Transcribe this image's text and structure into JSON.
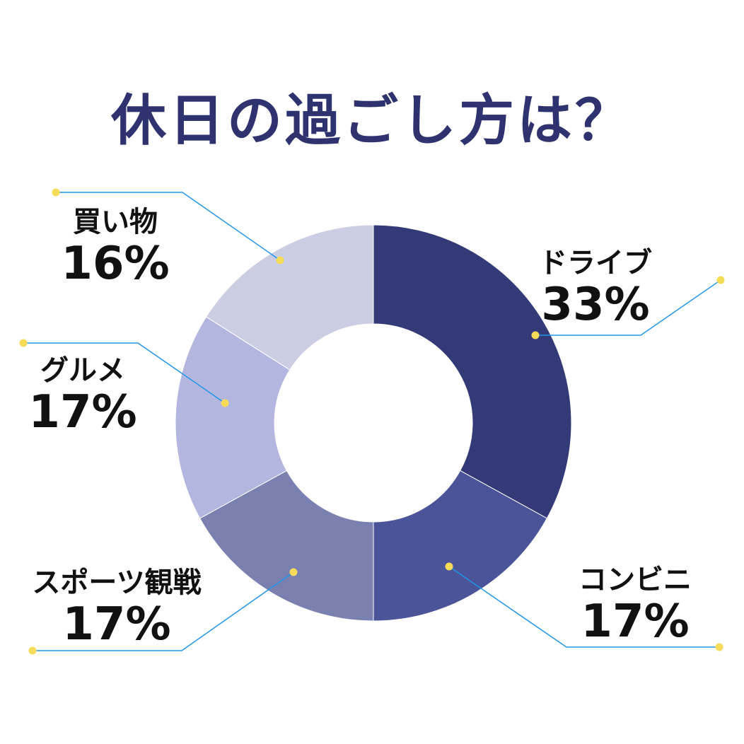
{
  "chart_data": {
    "type": "pie",
    "title": "休日の過ごし方は？",
    "categories": [
      "ドライブ",
      "コンビニ",
      "スポーツ観戦",
      "グルメ",
      "買い物"
    ],
    "values": [
      33,
      17,
      17,
      17,
      16
    ],
    "value_labels": [
      "33%",
      "17%",
      "17%",
      "17%",
      "16%"
    ],
    "colors": [
      "#333a77",
      "#4b5399",
      "#7a80b0",
      "#b3b6de",
      "#cbcde3"
    ],
    "donut": true,
    "legend": "none"
  },
  "colors": {
    "title": "#2e3370",
    "leader_line": "#2196e8",
    "marker": "#f7dc5a"
  }
}
